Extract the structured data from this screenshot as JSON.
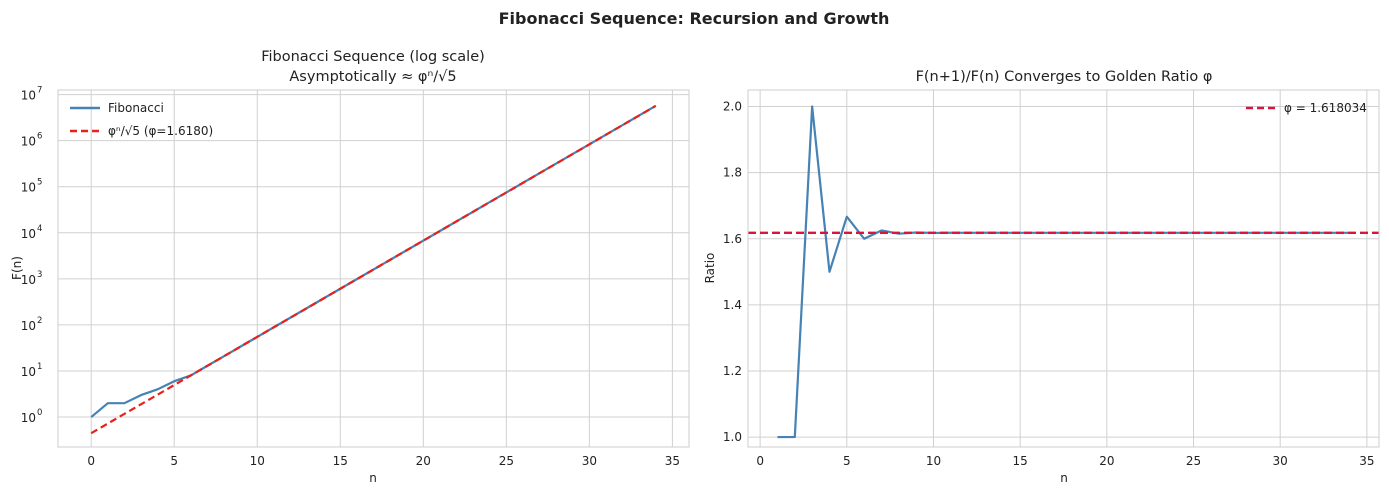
{
  "figure": {
    "suptitle": "Fibonacci Sequence: Recursion and Growth"
  },
  "chart_data": [
    {
      "type": "line",
      "title_line1": "Fibonacci Sequence (log scale)",
      "title_line2": "Asymptotically ≈ φⁿ/√5",
      "xlabel": "n",
      "ylabel": "F(n)",
      "yscale": "log",
      "xlim": [
        -2,
        36
      ],
      "ylim_exp": [
        -0.65,
        7.1
      ],
      "xticks": [
        0,
        5,
        10,
        15,
        20,
        25,
        30,
        35
      ],
      "xtick_labels": [
        "0",
        "5",
        "10",
        "15",
        "20",
        "25",
        "30",
        "35"
      ],
      "yticks_exp": [
        0,
        1,
        2,
        3,
        4,
        5,
        6,
        7
      ],
      "ytick_base": "10",
      "legend_position": "upper-left",
      "series": [
        {
          "name": "Fibonacci",
          "color": "#4682b4",
          "style": "solid",
          "x": [
            0,
            1,
            2,
            3,
            4,
            5,
            6,
            7,
            8,
            9,
            10,
            11,
            12,
            13,
            14,
            15,
            16,
            17,
            18,
            19,
            20,
            21,
            22,
            23,
            24,
            25,
            26,
            27,
            28,
            29,
            30,
            31,
            32,
            33,
            34
          ],
          "y": [
            1,
            2,
            2,
            3,
            4,
            6,
            8,
            13,
            21,
            34,
            55,
            89,
            144,
            233,
            377,
            610,
            987,
            1597,
            2584,
            4181,
            6765,
            10946,
            17711,
            28657,
            46368,
            75025,
            121393,
            196418,
            317811,
            514229,
            832040,
            1346269,
            2178309,
            3524578,
            5702887
          ]
        },
        {
          "name": "φⁿ/√5 (φ=1.6180)",
          "color": "#e8211a",
          "style": "dashed",
          "x": [
            0,
            34
          ],
          "y": [
            0.4472,
            5702887
          ]
        }
      ]
    },
    {
      "type": "line",
      "title": "F(n+1)/F(n) Converges to Golden Ratio φ",
      "xlabel": "n",
      "ylabel": "Ratio",
      "xlim": [
        -0.7,
        35.7
      ],
      "ylim": [
        0.97,
        2.05
      ],
      "xticks": [
        0,
        5,
        10,
        15,
        20,
        25,
        30,
        35
      ],
      "xtick_labels": [
        "0",
        "5",
        "10",
        "15",
        "20",
        "25",
        "30",
        "35"
      ],
      "yticks": [
        1.0,
        1.2,
        1.4,
        1.6,
        1.8,
        2.0
      ],
      "ytick_labels": [
        "1.0",
        "1.2",
        "1.4",
        "1.6",
        "1.8",
        "2.0"
      ],
      "legend_position": "upper-right",
      "series": [
        {
          "name": "Ratio",
          "color": "#4682b4",
          "style": "solid",
          "x": [
            1,
            2,
            3,
            4,
            5,
            6,
            7,
            8,
            9,
            10,
            11,
            12,
            13,
            14,
            15,
            16,
            17,
            18,
            19,
            20,
            21,
            22,
            23,
            24,
            25,
            26,
            27,
            28,
            29,
            30,
            31,
            32,
            33,
            34
          ],
          "y": [
            1.0,
            1.0,
            2.0,
            1.5,
            1.6667,
            1.6,
            1.625,
            1.6154,
            1.619,
            1.6176,
            1.6182,
            1.618,
            1.6181,
            1.618,
            1.618,
            1.618,
            1.618,
            1.618,
            1.618,
            1.618,
            1.618,
            1.618,
            1.618,
            1.618,
            1.618,
            1.618,
            1.618,
            1.618,
            1.618,
            1.618,
            1.618,
            1.618,
            1.618,
            1.618
          ]
        }
      ],
      "reference_line": {
        "name": "φ = 1.618034",
        "value": 1.618034,
        "color": "#dc143c",
        "style": "dashed"
      }
    }
  ]
}
